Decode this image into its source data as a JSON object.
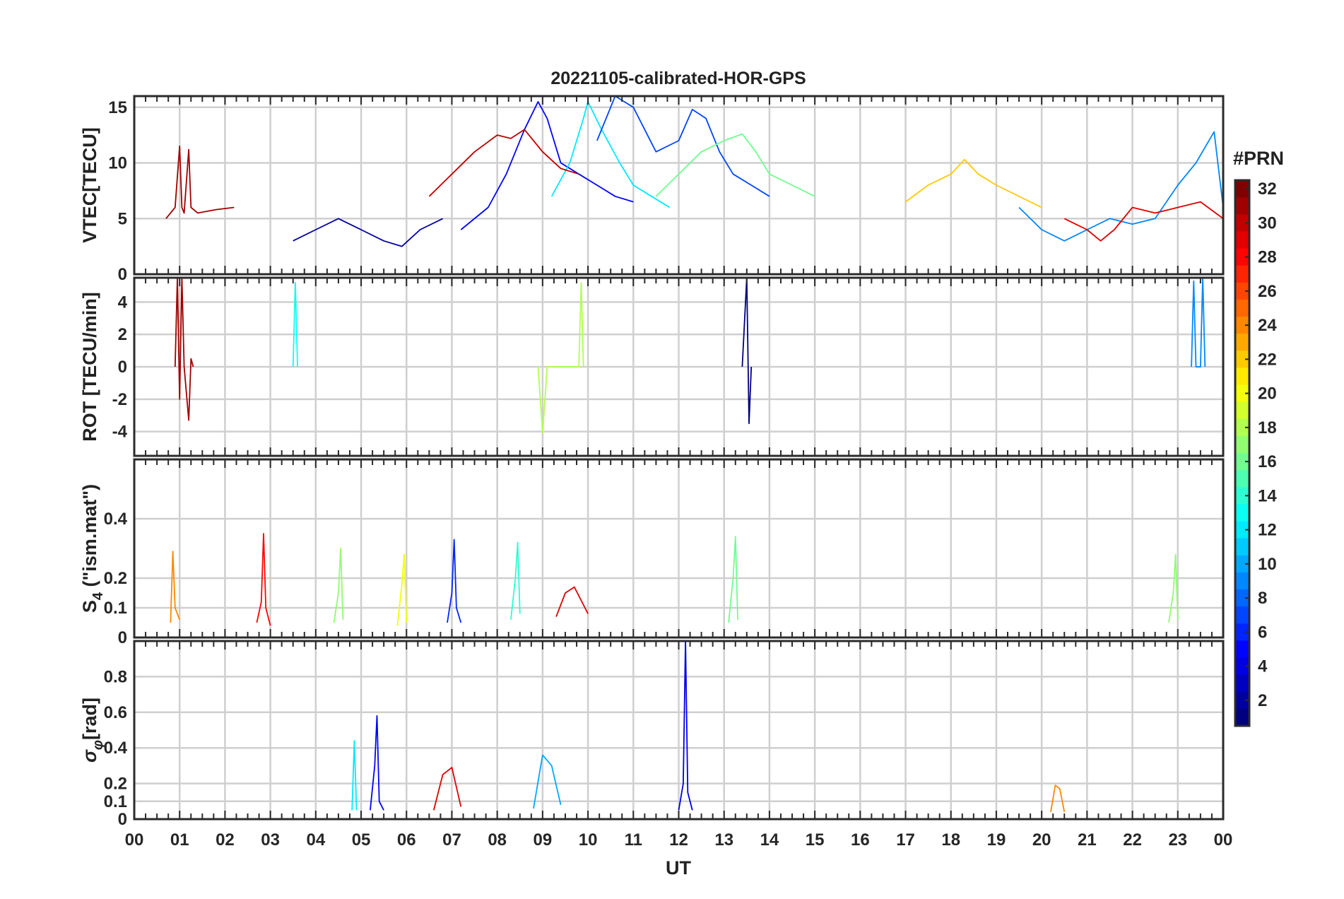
{
  "chart_data": {
    "type": "line",
    "title": "20221105-calibrated-HOR-GPS",
    "xlabel": "UT",
    "x_tick_labels": [
      "00",
      "01",
      "02",
      "03",
      "04",
      "05",
      "06",
      "07",
      "08",
      "09",
      "10",
      "11",
      "12",
      "13",
      "14",
      "15",
      "16",
      "17",
      "18",
      "19",
      "20",
      "21",
      "22",
      "23",
      "00"
    ],
    "xlim": [
      0,
      24
    ],
    "colorbar": {
      "label": "#PRN",
      "colormap": "jet",
      "range": [
        1,
        32
      ],
      "tick_labels": [
        "2",
        "4",
        "6",
        "8",
        "10",
        "12",
        "14",
        "16",
        "18",
        "20",
        "22",
        "24",
        "26",
        "28",
        "30",
        "32"
      ]
    },
    "panels": [
      {
        "id": "vtec",
        "ylabel": "VTEC[TECU]",
        "ylim": [
          0,
          16
        ],
        "y_ticks": [
          0,
          5,
          10,
          15
        ],
        "y_tick_labels": [
          "0",
          "5",
          "10",
          "15"
        ],
        "series": [
          {
            "prn": 31,
            "x": [
              0.7,
              0.9,
              1.0,
              1.05,
              1.1,
              1.2,
              1.25,
              1.4,
              1.8,
              2.2
            ],
            "y": [
              5,
              6,
              11.5,
              6,
              5.5,
              11.2,
              6,
              5.5,
              5.8,
              6
            ]
          },
          {
            "prn": 5,
            "x": [
              7.2,
              7.8,
              8.2,
              8.6,
              8.9,
              9.1,
              9.4,
              9.8,
              10.2,
              10.6,
              11.0
            ],
            "y": [
              4,
              6,
              9,
              13,
              15.5,
              14,
              10,
              9,
              8,
              7,
              6.5
            ]
          },
          {
            "prn": 12,
            "x": [
              9.2,
              9.6,
              9.9,
              10.0,
              10.3,
              10.7,
              11.0,
              11.4,
              11.8
            ],
            "y": [
              7,
              10,
              14,
              15.5,
              13,
              10,
              8,
              7,
              6
            ]
          },
          {
            "prn": 7,
            "x": [
              10.2,
              10.6,
              11.0,
              11.5,
              12.0,
              12.3,
              12.6,
              12.9,
              13.2,
              13.6,
              14.0
            ],
            "y": [
              12,
              16,
              15,
              11,
              12,
              14.8,
              14,
              11,
              9,
              8,
              7
            ]
          },
          {
            "prn": 30,
            "x": [
              6.5,
              7.0,
              7.5,
              8.0,
              8.3,
              8.6,
              9.0,
              9.4,
              9.8
            ],
            "y": [
              7,
              9,
              11,
              12.5,
              12.2,
              13,
              11,
              9.5,
              9
            ]
          },
          {
            "prn": 16,
            "x": [
              11.5,
              12.0,
              12.5,
              13.0,
              13.4,
              13.7,
              14.0,
              14.5,
              15.0
            ],
            "y": [
              7,
              9,
              11,
              12,
              12.6,
              11,
              9,
              8,
              7
            ]
          },
          {
            "prn": 22,
            "x": [
              17.0,
              17.5,
              18.0,
              18.3,
              18.6,
              19.0,
              19.5,
              20.0
            ],
            "y": [
              6.5,
              8,
              9,
              10.3,
              9,
              8,
              7,
              6
            ]
          },
          {
            "prn": 9,
            "x": [
              19.5,
              20.0,
              20.5,
              21.0,
              21.5,
              22.0,
              22.5,
              23.0,
              23.4,
              23.8,
              24.0
            ],
            "y": [
              6,
              4,
              3,
              4,
              5,
              4.5,
              5,
              8,
              10,
              12.8,
              6
            ]
          },
          {
            "prn": 29,
            "x": [
              20.5,
              21.0,
              21.3,
              21.6,
              22.0,
              22.5,
              23.0,
              23.5,
              24.0
            ],
            "y": [
              5,
              4,
              3,
              4,
              6,
              5.5,
              6,
              6.5,
              5
            ]
          },
          {
            "prn": 2,
            "x": [
              3.5,
              4.0,
              4.5,
              5.0,
              5.5,
              5.9,
              6.3,
              6.8
            ],
            "y": [
              3,
              4,
              5,
              4,
              3,
              2.5,
              4,
              5
            ]
          }
        ]
      },
      {
        "id": "rot",
        "ylabel": "ROT [TECU/min]",
        "ylim": [
          -5.5,
          5.5
        ],
        "y_ticks": [
          -4,
          -2,
          0,
          2,
          4
        ],
        "y_tick_labels": [
          "-4",
          "-2",
          "0",
          "2",
          "4"
        ],
        "series": [
          {
            "prn": 31,
            "x": [
              0.9,
              0.95,
              1.0,
              1.05,
              1.1,
              1.2,
              1.25,
              1.3
            ],
            "y": [
              0,
              5.5,
              -2,
              5.5,
              0,
              -3.3,
              0.5,
              0
            ]
          },
          {
            "prn": 13,
            "x": [
              3.5,
              3.55,
              3.6
            ],
            "y": [
              0,
              5.2,
              0
            ]
          },
          {
            "prn": 1,
            "x": [
              13.4,
              13.5,
              13.55,
              13.6
            ],
            "y": [
              0,
              5.5,
              -3.5,
              0
            ]
          },
          {
            "prn": 9,
            "x": [
              23.3,
              23.35,
              23.4,
              23.5,
              23.55,
              23.6
            ],
            "y": [
              0,
              5.3,
              0,
              0,
              5.5,
              0
            ]
          },
          {
            "prn": 18,
            "x": [
              8.9,
              9.0,
              9.1,
              9.8,
              9.85,
              9.9
            ],
            "y": [
              0,
              -4.1,
              0,
              0,
              5.2,
              0
            ]
          }
        ]
      },
      {
        "id": "s4",
        "ylabel": "S4 (\"ism.mat\")",
        "ylabel_main": "S",
        "ylabel_sub": "4",
        "ylabel_rest": " (\"ism.mat\")",
        "ylim": [
          0,
          0.6
        ],
        "y_ticks": [
          0,
          0.1,
          0.2,
          0.4
        ],
        "y_tick_labels": [
          "0",
          "0.1",
          "0.2",
          "0.4"
        ],
        "series": [
          {
            "prn": 28,
            "x": [
              2.7,
              2.8,
              2.85,
              2.9,
              3.0
            ],
            "y": [
              0.05,
              0.12,
              0.35,
              0.1,
              0.04
            ]
          },
          {
            "prn": 6,
            "x": [
              6.9,
              7.0,
              7.05,
              7.1,
              7.2
            ],
            "y": [
              0.05,
              0.15,
              0.33,
              0.1,
              0.05
            ]
          },
          {
            "prn": 17,
            "x": [
              4.4,
              4.5,
              4.55,
              4.6
            ],
            "y": [
              0.05,
              0.15,
              0.3,
              0.06
            ]
          },
          {
            "prn": 24,
            "x": [
              0.8,
              0.85,
              0.9,
              1.0
            ],
            "y": [
              0.05,
              0.29,
              0.1,
              0.06
            ]
          },
          {
            "prn": 20,
            "x": [
              5.8,
              5.9,
              5.95,
              6.0
            ],
            "y": [
              0.04,
              0.18,
              0.28,
              0.05
            ]
          },
          {
            "prn": 14,
            "x": [
              8.3,
              8.4,
              8.45,
              8.5
            ],
            "y": [
              0.06,
              0.2,
              0.32,
              0.08
            ]
          },
          {
            "prn": 16,
            "x": [
              13.1,
              13.2,
              13.25,
              13.3
            ],
            "y": [
              0.05,
              0.2,
              0.34,
              0.06
            ]
          },
          {
            "prn": 17,
            "x": [
              22.8,
              22.9,
              22.95,
              23.0
            ],
            "y": [
              0.05,
              0.15,
              0.28,
              0.06
            ]
          },
          {
            "prn": 29,
            "x": [
              9.3,
              9.5,
              9.7,
              10.0
            ],
            "y": [
              0.07,
              0.15,
              0.17,
              0.08
            ]
          }
        ]
      },
      {
        "id": "sigma_phi",
        "ylabel": "σφ[rad]",
        "ylabel_main": "σ",
        "ylabel_sub": "φ",
        "ylabel_rest": "[rad]",
        "ylim": [
          0,
          1.0
        ],
        "y_ticks": [
          0,
          0.1,
          0.2,
          0.4,
          0.6,
          0.8
        ],
        "y_tick_labels": [
          "0",
          "0.1",
          "0.2",
          "0.4",
          "0.6",
          "0.8"
        ],
        "series": [
          {
            "prn": 4,
            "x": [
              12.0,
              12.1,
              12.15,
              12.2,
              12.3
            ],
            "y": [
              0.05,
              0.2,
              1.0,
              0.15,
              0.05
            ]
          },
          {
            "prn": 5,
            "x": [
              5.2,
              5.3,
              5.35,
              5.4,
              5.5
            ],
            "y": [
              0.05,
              0.3,
              0.58,
              0.1,
              0.05
            ]
          },
          {
            "prn": 12,
            "x": [
              4.8,
              4.85,
              4.9
            ],
            "y": [
              0.05,
              0.44,
              0.05
            ]
          },
          {
            "prn": 10,
            "x": [
              8.8,
              9.0,
              9.2,
              9.4
            ],
            "y": [
              0.06,
              0.36,
              0.3,
              0.08
            ]
          },
          {
            "prn": 29,
            "x": [
              6.6,
              6.8,
              7.0,
              7.2
            ],
            "y": [
              0.05,
              0.25,
              0.29,
              0.07
            ]
          },
          {
            "prn": 24,
            "x": [
              20.2,
              20.3,
              20.4,
              20.5
            ],
            "y": [
              0.04,
              0.19,
              0.17,
              0.04
            ]
          }
        ]
      }
    ]
  }
}
